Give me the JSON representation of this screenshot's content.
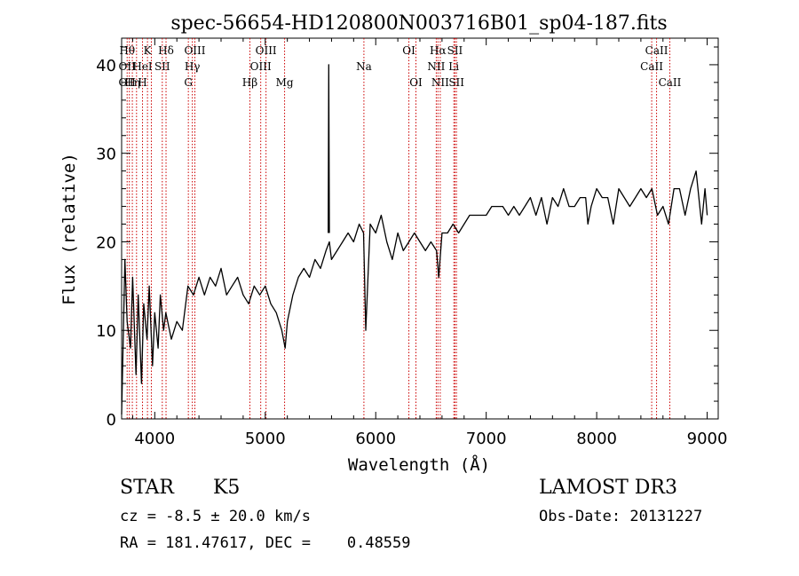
{
  "chart_data": {
    "type": "line",
    "title": "spec-56654-HD120800N003716B01_sp04-187.fits",
    "xlabel": "Wavelength (Å)",
    "ylabel": "Flux (relative)",
    "xlim": [
      3700,
      9100
    ],
    "ylim": [
      0,
      43
    ],
    "xticks": [
      4000,
      5000,
      6000,
      7000,
      8000,
      9000
    ],
    "yticks": [
      0,
      10,
      20,
      30,
      40
    ],
    "xtick_labels": [
      "4000",
      "5000",
      "6000",
      "7000",
      "8000",
      "9000"
    ],
    "ytick_labels": [
      "0",
      "10",
      "20",
      "30",
      "40"
    ],
    "series": [
      {
        "name": "spectrum",
        "x": [
          3700,
          3730,
          3750,
          3780,
          3800,
          3830,
          3850,
          3880,
          3900,
          3930,
          3950,
          3980,
          4000,
          4030,
          4050,
          4080,
          4100,
          4150,
          4200,
          4250,
          4300,
          4350,
          4400,
          4450,
          4500,
          4550,
          4600,
          4650,
          4700,
          4750,
          4800,
          4850,
          4900,
          4950,
          5000,
          5050,
          5100,
          5150,
          5180,
          5200,
          5250,
          5300,
          5350,
          5400,
          5450,
          5500,
          5550,
          5580,
          5600,
          5650,
          5700,
          5750,
          5800,
          5850,
          5890,
          5910,
          5950,
          6000,
          6050,
          6100,
          6150,
          6200,
          6250,
          6300,
          6350,
          6400,
          6450,
          6500,
          6550,
          6570,
          6600,
          6650,
          6700,
          6750,
          6800,
          6850,
          6900,
          6950,
          7000,
          7050,
          7100,
          7150,
          7200,
          7250,
          7300,
          7350,
          7400,
          7450,
          7500,
          7550,
          7600,
          7650,
          7700,
          7750,
          7800,
          7850,
          7900,
          7920,
          7950,
          8000,
          8050,
          8100,
          8150,
          8200,
          8250,
          8300,
          8350,
          8400,
          8450,
          8500,
          8550,
          8600,
          8650,
          8700,
          8750,
          8800,
          8850,
          8900,
          8950,
          8980,
          9000
        ],
        "values": [
          0.5,
          18,
          11,
          8,
          16,
          5,
          14,
          4,
          13,
          9,
          15,
          6,
          12,
          8,
          14,
          10,
          12,
          9,
          11,
          10,
          15,
          14,
          16,
          14,
          16,
          15,
          17,
          14,
          15,
          16,
          14,
          13,
          15,
          14,
          15,
          13,
          12,
          10,
          8,
          11,
          14,
          16,
          17,
          16,
          18,
          17,
          19,
          20,
          18,
          19,
          20,
          21,
          20,
          22,
          21,
          10,
          22,
          21,
          23,
          20,
          18,
          21,
          19,
          20,
          21,
          20,
          19,
          20,
          19,
          16,
          21,
          21,
          22,
          21,
          22,
          23,
          23,
          23,
          23,
          24,
          24,
          24,
          23,
          24,
          23,
          24,
          25,
          23,
          25,
          22,
          25,
          24,
          26,
          24,
          24,
          25,
          25,
          22,
          24,
          26,
          25,
          25,
          22,
          26,
          25,
          24,
          25,
          26,
          25,
          26,
          23,
          24,
          22,
          26,
          26,
          23,
          26,
          28,
          22,
          26,
          23
        ]
      },
      {
        "name": "spike",
        "x": [
          5570,
          5575,
          5580
        ],
        "values": [
          21,
          40,
          21
        ]
      }
    ],
    "line_markers": [
      {
        "wavelength": 3750,
        "labels": [
          "Hθ",
          "OII",
          "OII"
        ]
      },
      {
        "wavelength": 3770,
        "labels": [
          "",
          "",
          ""
        ]
      },
      {
        "wavelength": 3797,
        "labels": [
          "",
          "",
          "Hη"
        ]
      },
      {
        "wavelength": 3835,
        "labels": [
          "",
          "",
          ""
        ]
      },
      {
        "wavelength": 3889,
        "labels": [
          "",
          "HeI",
          "H"
        ]
      },
      {
        "wavelength": 3934,
        "labels": [
          "K",
          "",
          ""
        ]
      },
      {
        "wavelength": 3969,
        "labels": [
          "",
          "",
          ""
        ]
      },
      {
        "wavelength": 4068,
        "labels": [
          "",
          "SII",
          ""
        ]
      },
      {
        "wavelength": 4102,
        "labels": [
          "Hδ",
          "",
          ""
        ]
      },
      {
        "wavelength": 4304,
        "labels": [
          "",
          "",
          "G"
        ]
      },
      {
        "wavelength": 4340,
        "labels": [
          "",
          "Hγ",
          ""
        ]
      },
      {
        "wavelength": 4363,
        "labels": [
          "OIII",
          "",
          ""
        ]
      },
      {
        "wavelength": 4861,
        "labels": [
          "",
          "",
          "Hβ"
        ]
      },
      {
        "wavelength": 4959,
        "labels": [
          "",
          "OIII",
          ""
        ]
      },
      {
        "wavelength": 5007,
        "labels": [
          "OIII",
          "",
          ""
        ]
      },
      {
        "wavelength": 5175,
        "labels": [
          "",
          "",
          "Mg"
        ]
      },
      {
        "wavelength": 5893,
        "labels": [
          "",
          "Na",
          ""
        ]
      },
      {
        "wavelength": 6300,
        "labels": [
          "OI",
          "",
          ""
        ]
      },
      {
        "wavelength": 6364,
        "labels": [
          "",
          "",
          "OI"
        ]
      },
      {
        "wavelength": 6548,
        "labels": [
          "",
          "NII",
          ""
        ]
      },
      {
        "wavelength": 6563,
        "labels": [
          "Hα",
          "",
          ""
        ]
      },
      {
        "wavelength": 6584,
        "labels": [
          "",
          "",
          "NII"
        ]
      },
      {
        "wavelength": 6707,
        "labels": [
          "",
          "Li",
          ""
        ]
      },
      {
        "wavelength": 6717,
        "labels": [
          "SII",
          "",
          ""
        ]
      },
      {
        "wavelength": 6731,
        "labels": [
          "",
          "",
          "SII"
        ]
      },
      {
        "wavelength": 8498,
        "labels": [
          "",
          "CaII",
          ""
        ]
      },
      {
        "wavelength": 8542,
        "labels": [
          "CaII",
          "",
          ""
        ]
      },
      {
        "wavelength": 8662,
        "labels": [
          "",
          "",
          "CaII"
        ]
      }
    ],
    "colors": {
      "spectrum": "#000000",
      "line_markers": "#cc0000"
    }
  },
  "info": {
    "object_class": "STAR",
    "subclass": "K5",
    "survey": "LAMOST DR3",
    "redshift": "cz = -8.5 ± 20.0 km/s",
    "obs_date": "Obs-Date: 20131227",
    "coords": "RA = 181.47617, DEC =    0.48559"
  }
}
